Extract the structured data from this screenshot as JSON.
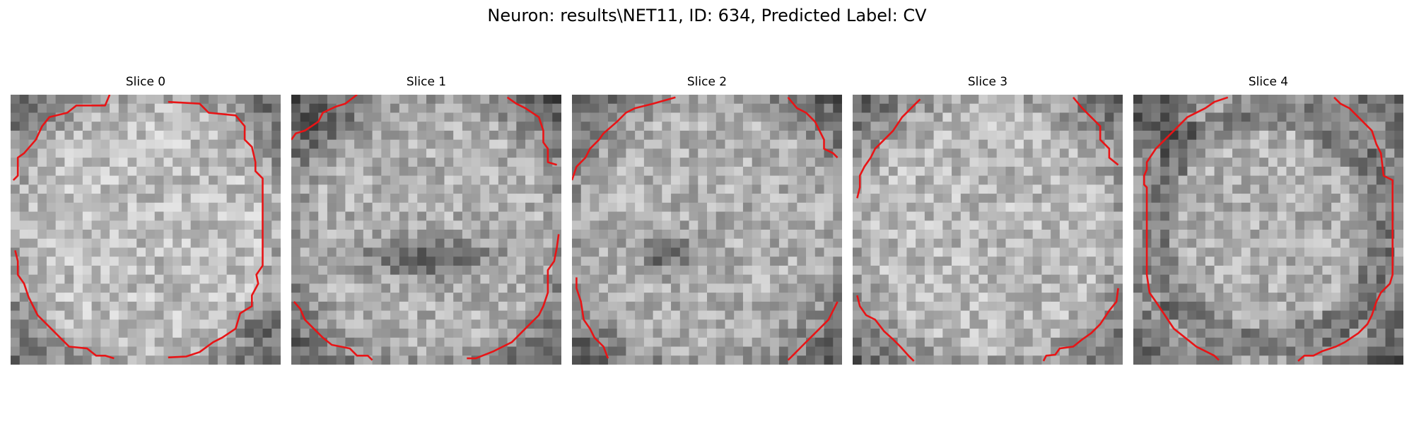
{
  "figure": {
    "title": "Neuron: results\\NET11, ID: 634, Predicted Label: CV"
  },
  "panels": [
    {
      "title": "Slice 0"
    },
    {
      "title": "Slice 1"
    },
    {
      "title": "Slice 2"
    },
    {
      "title": "Slice 3"
    },
    {
      "title": "Slice 4"
    }
  ],
  "colors": {
    "contour": "#e81416",
    "background": "#ffffff"
  }
}
